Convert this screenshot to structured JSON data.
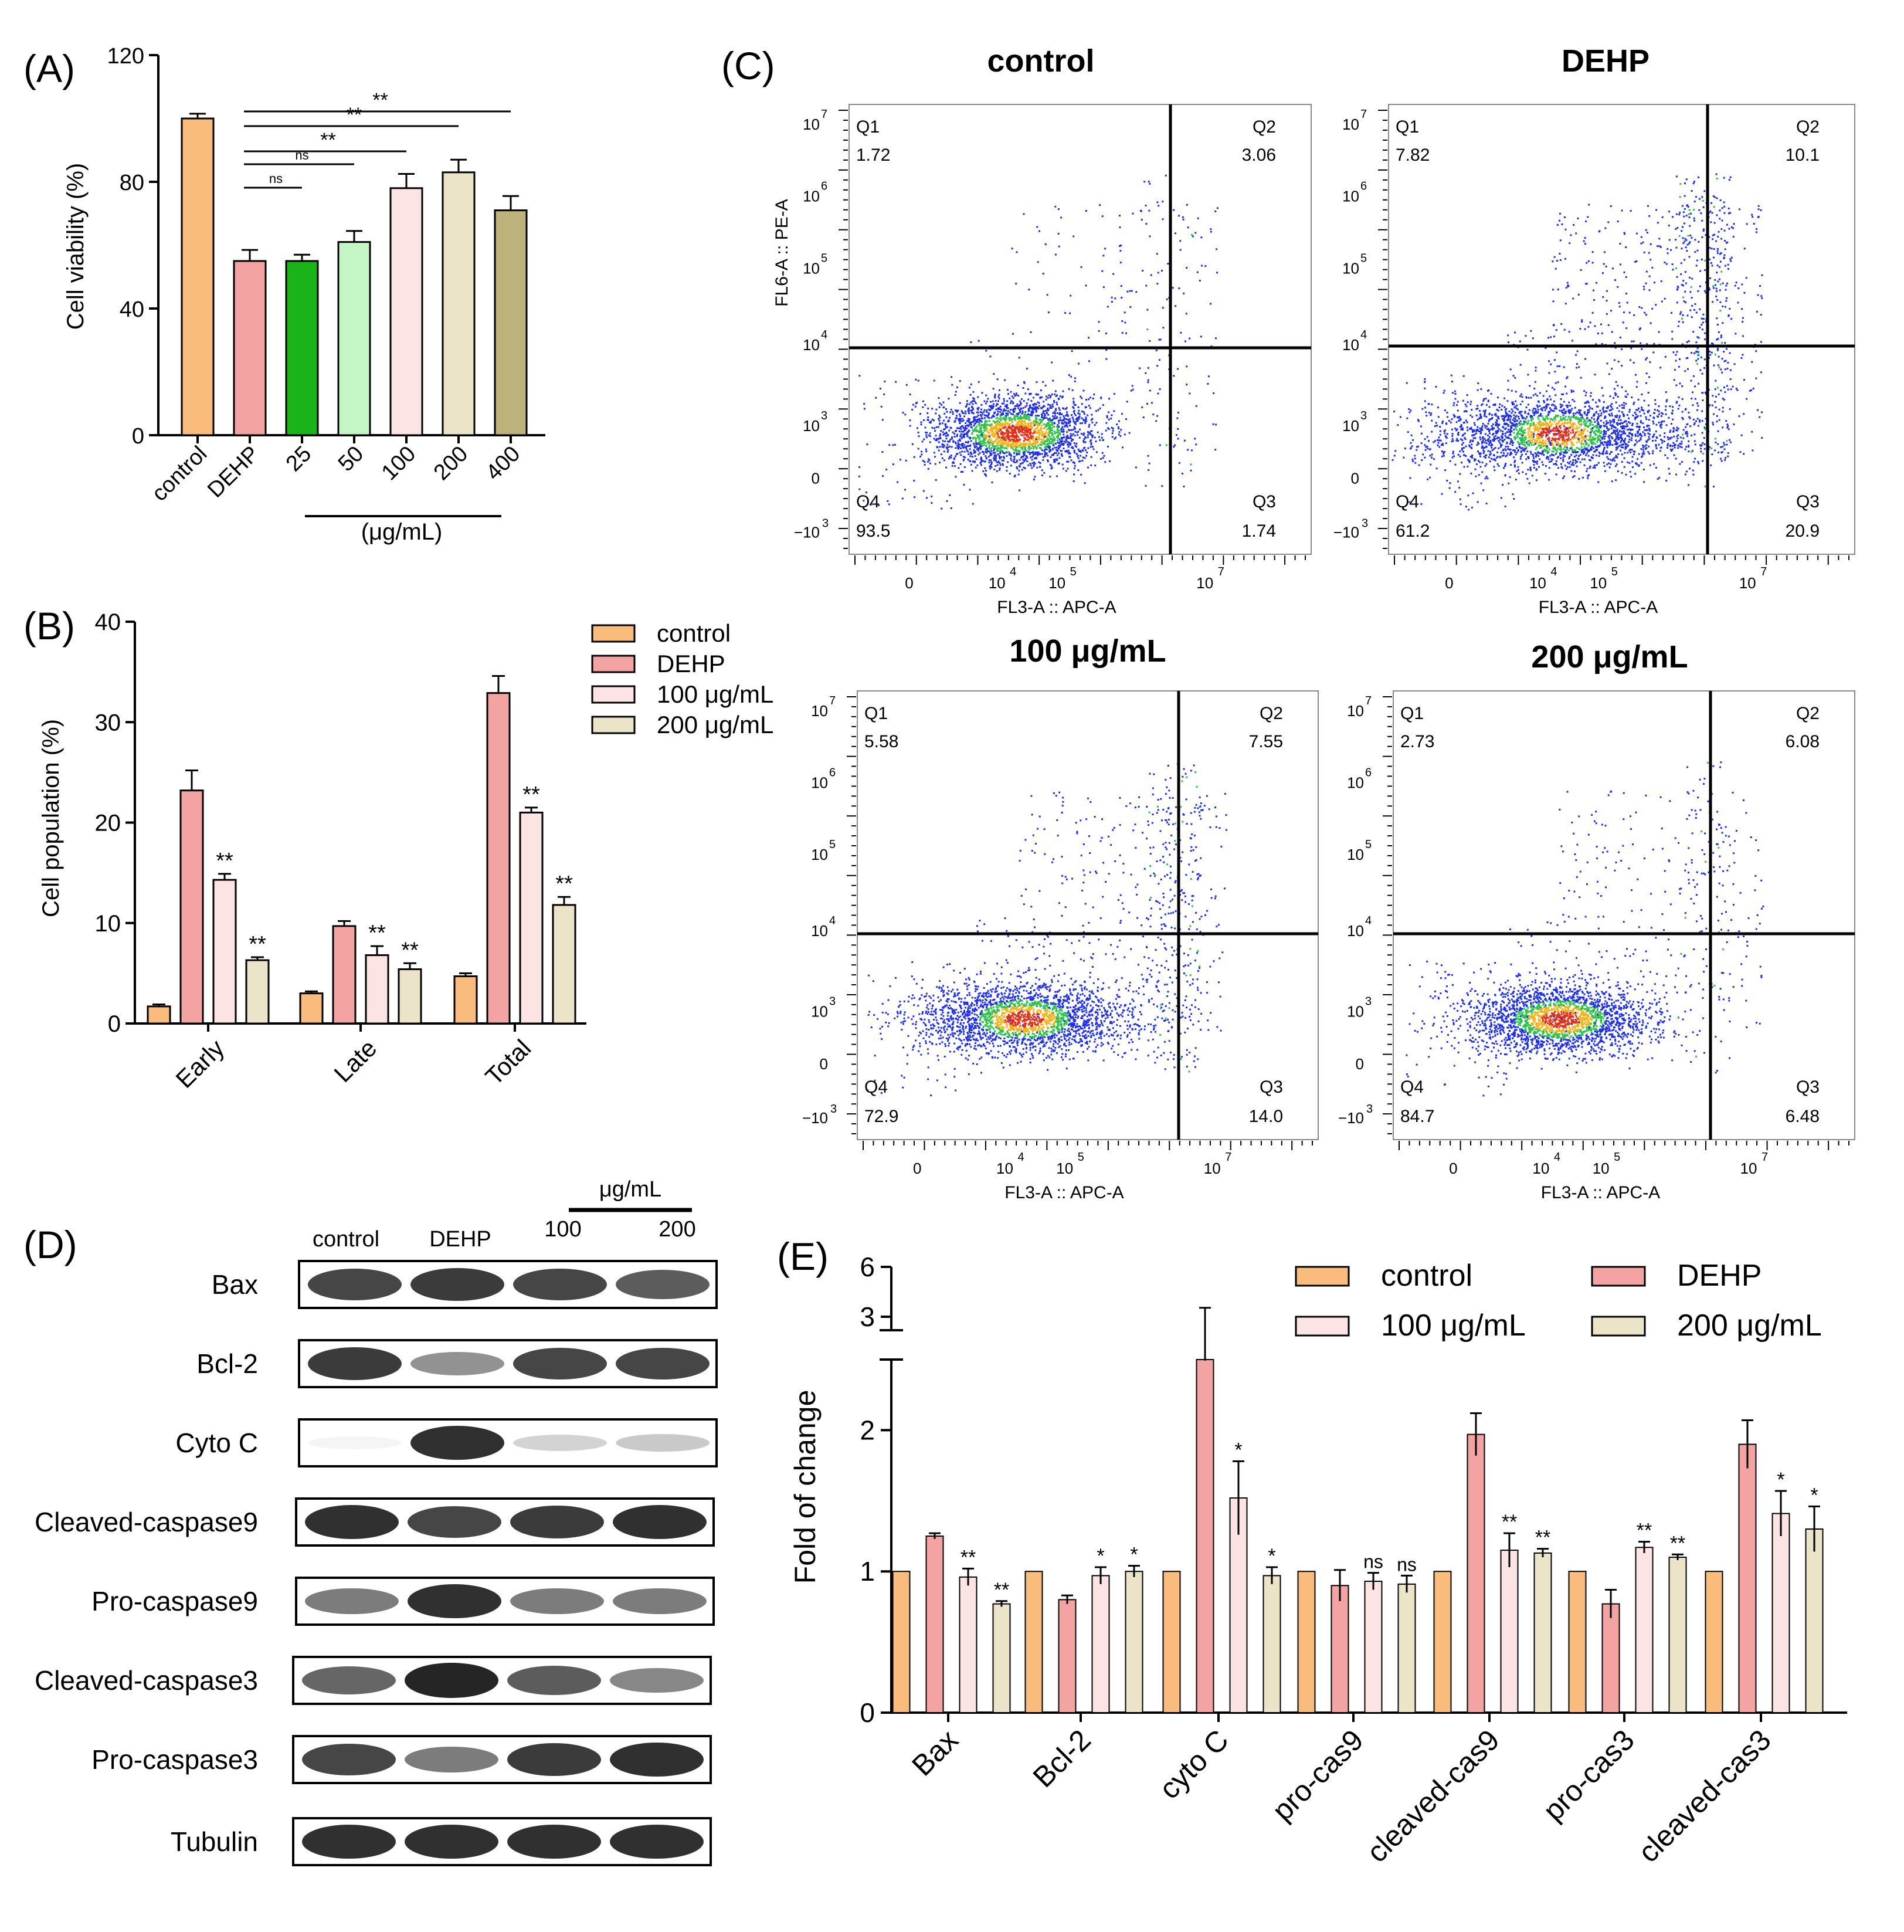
{
  "palette": {
    "control": "#F9BC7D",
    "dehp": "#F4A3A3",
    "c25": "#1AB31A",
    "c50": "#C4F5C4",
    "c100": "#FCE4E4",
    "c200": "#ECE4C8",
    "c400": "#BDB17C",
    "axis": "#000000",
    "dot": "#1F2FE6"
  },
  "panels": {
    "A": {
      "letter": "(A)"
    },
    "B": {
      "letter": "(B)"
    },
    "C": {
      "letter": "(C)"
    },
    "D": {
      "letter": "(D)"
    },
    "E": {
      "letter": "(E)"
    }
  },
  "chart_data": [
    {
      "panel": "A",
      "type": "bar",
      "ylabel": "Cell viability (%)",
      "ylim": [
        0,
        120
      ],
      "yticks": [
        0,
        40,
        80,
        120
      ],
      "categories": [
        "control",
        "DEHP",
        "25",
        "50",
        "100",
        "200",
        "400"
      ],
      "values": [
        100,
        55,
        55,
        61,
        78,
        83,
        71
      ],
      "errors": [
        1.5,
        3.5,
        2,
        3.5,
        4.5,
        4,
        4.5
      ],
      "colors": [
        "#F9BC7D",
        "#F4A3A3",
        "#1AB31A",
        "#C4F5C4",
        "#FCE4E4",
        "#ECE4C8",
        "#BDB17C"
      ],
      "unit_label": "(μg/mL)",
      "comparisons": [
        {
          "from": 1,
          "to": 2,
          "label": "ns"
        },
        {
          "from": 1,
          "to": 3,
          "label": "ns"
        },
        {
          "from": 1,
          "to": 4,
          "label": "**"
        },
        {
          "from": 1,
          "to": 5,
          "label": "**"
        },
        {
          "from": 1,
          "to": 6,
          "label": "**"
        }
      ]
    },
    {
      "panel": "B",
      "type": "bar",
      "ylabel": "Cell population (%)",
      "ylim": [
        0,
        40
      ],
      "yticks": [
        0,
        10,
        20,
        30,
        40
      ],
      "categories": [
        "Early",
        "Late",
        "Total"
      ],
      "legend_position": "top-right",
      "series": [
        {
          "name": "control",
          "color": "#F9BC7D",
          "values": [
            1.7,
            3.0,
            4.7
          ],
          "errors": [
            0.2,
            0.2,
            0.3
          ],
          "marks": [
            "",
            "",
            ""
          ]
        },
        {
          "name": "DEHP",
          "color": "#F4A3A3",
          "values": [
            23.2,
            9.7,
            32.9
          ],
          "errors": [
            2.0,
            0.5,
            1.7
          ],
          "marks": [
            "",
            "",
            ""
          ]
        },
        {
          "name": "100 μg/mL",
          "color": "#FCE4E4",
          "values": [
            14.3,
            6.8,
            21.0
          ],
          "errors": [
            0.6,
            0.9,
            0.5
          ],
          "marks": [
            "**",
            "**",
            "**"
          ]
        },
        {
          "name": "200 μg/mL",
          "color": "#ECE4C8",
          "values": [
            6.3,
            5.4,
            11.8
          ],
          "errors": [
            0.3,
            0.6,
            0.8
          ],
          "marks": [
            "**",
            "**",
            "**"
          ]
        }
      ]
    },
    {
      "panel": "C",
      "type": "scatter",
      "xlabel": "FL3-A :: APC-A",
      "ylabel": "FL6-A :: PE-A",
      "plots": [
        {
          "title": "control",
          "quadrants": {
            "Q1": "1.72",
            "Q2": "3.06",
            "Q3": "1.74",
            "Q4": "93.5"
          }
        },
        {
          "title": "DEHP",
          "quadrants": {
            "Q1": "7.82",
            "Q2": "10.1",
            "Q3": "20.9",
            "Q4": "61.2"
          }
        },
        {
          "title": "100 μg/mL",
          "quadrants": {
            "Q1": "5.58",
            "Q2": "7.55",
            "Q3": "14.0",
            "Q4": "72.9"
          }
        },
        {
          "title": "200 μg/mL",
          "quadrants": {
            "Q1": "2.73",
            "Q2": "6.08",
            "Q3": "6.48",
            "Q4": "84.7"
          }
        }
      ]
    },
    {
      "panel": "E",
      "type": "bar",
      "ylabel": "Fold of change",
      "ylim": [
        0,
        6
      ],
      "yticks_lower": [
        0,
        1,
        2
      ],
      "yticks_upper": [
        3,
        6
      ],
      "axis_break": [
        2.5,
        3
      ],
      "categories": [
        "Bax",
        "Bcl-2",
        "cyto C",
        "pro-cas9",
        "cleaved-cas9",
        "pro-cas3",
        "cleaved-cas3"
      ],
      "legend_position": "top-right",
      "series": [
        {
          "name": "control",
          "color": "#F9BC7D",
          "values": [
            1,
            1,
            1,
            1,
            1,
            1,
            1
          ],
          "errors": [
            0,
            0,
            0,
            0,
            0,
            0,
            0
          ],
          "marks": [
            "",
            "",
            "",
            "",
            "",
            "",
            ""
          ]
        },
        {
          "name": "DEHP",
          "color": "#F4A3A3",
          "values": [
            1.25,
            0.8,
            4.2,
            0.9,
            1.97,
            0.77,
            1.9
          ],
          "errors": [
            0.02,
            0.03,
            0.8,
            0.11,
            0.15,
            0.1,
            0.17
          ],
          "marks": [
            "",
            "",
            "",
            "",
            "",
            "",
            ""
          ]
        },
        {
          "name": "100 μg/mL",
          "color": "#FCE4E4",
          "values": [
            0.96,
            0.97,
            1.52,
            0.93,
            1.15,
            1.17,
            1.41
          ],
          "errors": [
            0.06,
            0.06,
            0.26,
            0.06,
            0.12,
            0.04,
            0.16
          ],
          "marks": [
            "**",
            "*",
            "*",
            "ns",
            "**",
            "**",
            "*"
          ]
        },
        {
          "name": "200 μg/mL",
          "color": "#ECE4C8",
          "values": [
            0.77,
            1.0,
            0.97,
            0.91,
            1.13,
            1.1,
            1.3
          ],
          "errors": [
            0.02,
            0.04,
            0.06,
            0.06,
            0.03,
            0.02,
            0.16
          ],
          "marks": [
            "**",
            "*",
            "*",
            "ns",
            "**",
            "**",
            "*"
          ]
        }
      ]
    }
  ],
  "western_blot": {
    "unit": "μg/mL",
    "lane_labels": [
      "control",
      "DEHP",
      "100",
      "200"
    ],
    "rows": [
      {
        "label": "Bax",
        "bands": [
          0.85,
          0.9,
          0.85,
          0.75
        ]
      },
      {
        "label": "Bcl-2",
        "bands": [
          0.9,
          0.5,
          0.85,
          0.85
        ]
      },
      {
        "label": "Cyto C",
        "bands": [
          0.05,
          0.95,
          0.2,
          0.25
        ]
      },
      {
        "label": "Cleaved-caspase9",
        "bands": [
          0.95,
          0.85,
          0.9,
          0.95
        ]
      },
      {
        "label": "Pro-caspase9",
        "bands": [
          0.6,
          0.95,
          0.6,
          0.6
        ]
      },
      {
        "label": "Cleaved-caspase3",
        "bands": [
          0.7,
          1.0,
          0.75,
          0.55
        ]
      },
      {
        "label": "Pro-caspase3",
        "bands": [
          0.85,
          0.6,
          0.9,
          0.95
        ]
      },
      {
        "label": "Tubulin",
        "bands": [
          0.95,
          0.95,
          0.95,
          0.95
        ]
      }
    ]
  }
}
